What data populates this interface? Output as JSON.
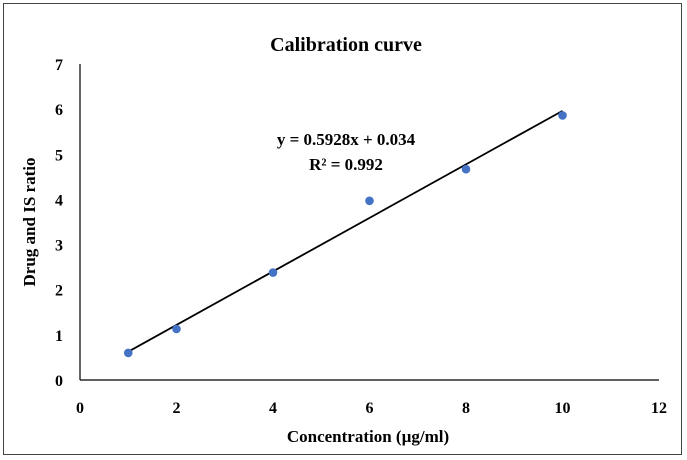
{
  "chart_data": {
    "type": "scatter",
    "title": "Calibration curve",
    "xlabel": "Concentration (µg/ml)",
    "ylabel": "Drug and IS ratio",
    "xlim": [
      0,
      12
    ],
    "ylim": [
      0,
      7
    ],
    "x_ticks": [
      0,
      2,
      4,
      6,
      8,
      10,
      12
    ],
    "y_ticks": [
      0,
      1,
      2,
      3,
      4,
      5,
      6,
      7
    ],
    "grid": false,
    "series": [
      {
        "x": [
          1,
          2,
          4,
          6,
          8,
          10
        ],
        "y": [
          0.6,
          1.13,
          2.38,
          3.97,
          4.67,
          5.86
        ],
        "color": "#4472C4"
      }
    ],
    "trendline": {
      "type": "linear",
      "slope": 0.5928,
      "intercept": 0.034,
      "x_range": [
        1,
        10
      ],
      "color": "#000000"
    },
    "annotations": {
      "equation": "y = 0.5928x + 0.034",
      "r_squared": "R² = 0.992"
    }
  }
}
